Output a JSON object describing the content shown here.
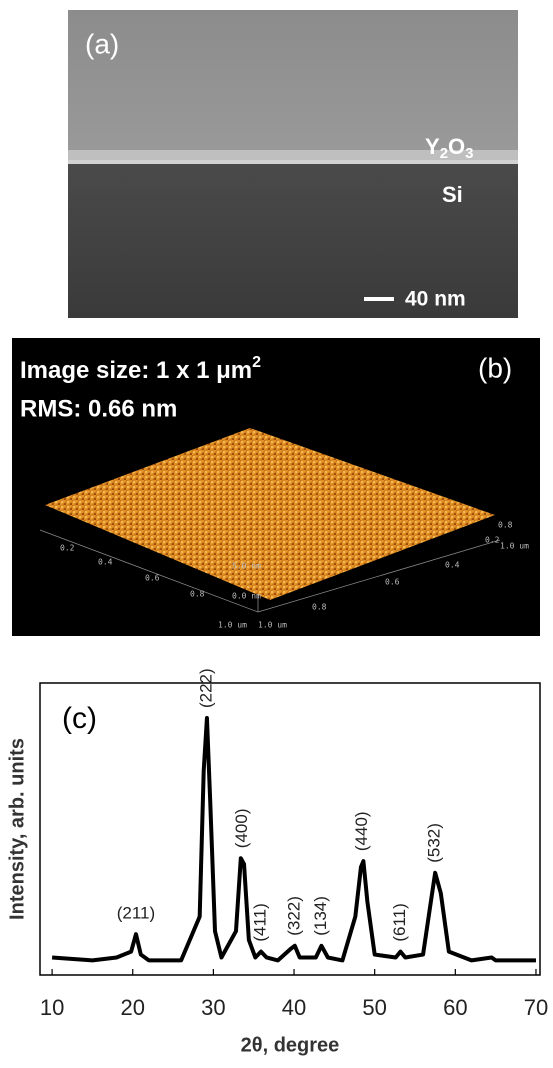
{
  "panel_a": {
    "label": "(a)",
    "film": [
      "Y",
      "2",
      "O",
      "3"
    ],
    "substrate": "Si",
    "scale_bar": "40 nm"
  },
  "panel_b": {
    "label": "(b)",
    "size_text": [
      "Image size: 1 x 1 μm",
      "2"
    ],
    "rms_text": "RMS: 0.66 nm",
    "axis_labels": [
      "0.2",
      "0.4",
      "0.6",
      "0.8",
      "1.0 um",
      "1.0 um",
      "0.8",
      "0.6",
      "0.4",
      "0.2",
      "1.0 um",
      "0.8",
      "5.0 nm",
      "0.0 nm"
    ]
  },
  "chart_data": {
    "type": "line",
    "panel_label": "(c)",
    "x_label": "2θ, degree",
    "y_label": "Intensity, arb. units",
    "xlim": [
      8.5,
      70.5
    ],
    "ylim": [
      0,
      100
    ],
    "xticks": [
      10,
      20,
      30,
      40,
      50,
      60,
      70
    ],
    "color": "#000000",
    "x": [
      10,
      15,
      18,
      19.8,
      20.4,
      21,
      22,
      26,
      28.3,
      28.8,
      29.2,
      29.6,
      30.2,
      31,
      32.8,
      33.4,
      33.8,
      34.4,
      35.2,
      35.9,
      36.6,
      38,
      39.6,
      40.1,
      40.7,
      42.7,
      43.4,
      44.2,
      46,
      47.6,
      48.3,
      48.6,
      49.1,
      50,
      52.6,
      53.2,
      53.8,
      56,
      56.8,
      57.5,
      58.2,
      59.2,
      62,
      64.5,
      65,
      70
    ],
    "values": [
      6,
      5,
      6,
      8,
      14,
      7,
      5,
      5,
      20,
      70,
      88,
      60,
      15,
      6,
      15,
      40,
      38,
      12,
      6,
      8,
      6,
      5,
      9,
      10,
      6,
      6,
      10,
      6,
      5,
      20,
      37,
      39,
      25,
      7,
      6,
      8,
      6,
      7,
      22,
      35,
      28,
      8,
      5,
      6,
      5,
      5
    ],
    "annotations": [
      {
        "text": "(211)",
        "x": 20.4,
        "y": 14,
        "rotated": false
      },
      {
        "text": "(222)",
        "x": 29.2,
        "y": 88,
        "rotated": true
      },
      {
        "text": "(400)",
        "x": 33.6,
        "y": 40,
        "rotated": true
      },
      {
        "text": "(411)",
        "x": 35.9,
        "y": 8,
        "rotated": true
      },
      {
        "text": "(322)",
        "x": 40.1,
        "y": 10,
        "rotated": true
      },
      {
        "text": "(134)",
        "x": 43.4,
        "y": 10,
        "rotated": true
      },
      {
        "text": "(440)",
        "x": 48.5,
        "y": 39,
        "rotated": true
      },
      {
        "text": "(611)",
        "x": 53.2,
        "y": 8,
        "rotated": true
      },
      {
        "text": "(532)",
        "x": 57.5,
        "y": 35,
        "rotated": true
      }
    ]
  }
}
